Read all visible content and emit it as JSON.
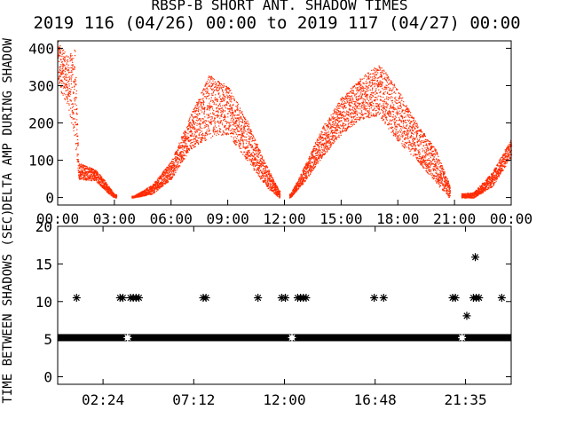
{
  "title_line1": "RBSP-B SHORT ANT. SHADOW TIMES",
  "title_line2": "2019 116 (04/26) 00:00 to 2019 117 (04/27) 00:00",
  "chart_data": [
    {
      "type": "scatter",
      "ylabel": "DELTA AMP DURING SHADOW",
      "x_ticks": [
        "00:00",
        "03:00",
        "06:00",
        "09:00",
        "12:00",
        "15:00",
        "18:00",
        "21:00",
        "00:00"
      ],
      "x_range_hours": [
        0,
        24
      ],
      "y_ticks": [
        0,
        100,
        200,
        300,
        400
      ],
      "ylim": [
        -20,
        420
      ],
      "color": "#ff2a00",
      "envelope": [
        {
          "x": 0.0,
          "lo": 300,
          "hi": 420
        },
        {
          "x": 0.5,
          "lo": 250,
          "hi": 380
        },
        {
          "x": 0.9,
          "lo": 150,
          "hi": 400
        },
        {
          "x": 1.1,
          "lo": 50,
          "hi": 95
        },
        {
          "x": 2.0,
          "lo": 45,
          "hi": 75
        },
        {
          "x": 2.3,
          "lo": 30,
          "hi": 60
        },
        {
          "x": 2.7,
          "lo": 10,
          "hi": 30
        },
        {
          "x": 3.0,
          "lo": 0,
          "hi": 10
        },
        {
          "x": 4.0,
          "lo": 0,
          "hi": 5
        },
        {
          "x": 5.0,
          "lo": 10,
          "hi": 35
        },
        {
          "x": 6.0,
          "lo": 50,
          "hi": 100
        },
        {
          "x": 7.0,
          "lo": 130,
          "hi": 220
        },
        {
          "x": 8.0,
          "lo": 160,
          "hi": 330
        },
        {
          "x": 9.0,
          "lo": 170,
          "hi": 300
        },
        {
          "x": 10.0,
          "lo": 100,
          "hi": 210
        },
        {
          "x": 11.0,
          "lo": 30,
          "hi": 90
        },
        {
          "x": 11.7,
          "lo": 0,
          "hi": 20
        },
        {
          "x": 12.3,
          "lo": 0,
          "hi": 10
        },
        {
          "x": 13.0,
          "lo": 40,
          "hi": 80
        },
        {
          "x": 14.0,
          "lo": 110,
          "hi": 190
        },
        {
          "x": 15.0,
          "lo": 170,
          "hi": 270
        },
        {
          "x": 16.0,
          "lo": 210,
          "hi": 320
        },
        {
          "x": 17.0,
          "lo": 220,
          "hi": 360
        },
        {
          "x": 18.0,
          "lo": 150,
          "hi": 290
        },
        {
          "x": 19.0,
          "lo": 100,
          "hi": 200
        },
        {
          "x": 20.0,
          "lo": 40,
          "hi": 130
        },
        {
          "x": 20.7,
          "lo": 0,
          "hi": 40
        },
        {
          "x": 21.0,
          "lo": 0,
          "hi": 10
        },
        {
          "x": 22.0,
          "lo": 0,
          "hi": 15
        },
        {
          "x": 23.0,
          "lo": 30,
          "hi": 70
        },
        {
          "x": 24.0,
          "lo": 110,
          "hi": 160
        }
      ]
    },
    {
      "type": "scatter",
      "ylabel": "TIME BETWEEN SHADOWS (SEC)",
      "x_ticks": [
        "02:24",
        "07:12",
        "12:00",
        "16:48",
        "21:35"
      ],
      "x_tick_hours": [
        2.4,
        7.2,
        12.0,
        16.8,
        21.5833
      ],
      "x_range_hours": [
        0,
        24
      ],
      "y_ticks": [
        0,
        5,
        10,
        15,
        20
      ],
      "ylim": [
        -1,
        20
      ],
      "baseline_value": 5.2,
      "baseline_hours": [
        0,
        24
      ],
      "points": [
        {
          "x": 1.0,
          "y": 10.5
        },
        {
          "x": 3.3,
          "y": 10.5
        },
        {
          "x": 3.45,
          "y": 10.5
        },
        {
          "x": 3.85,
          "y": 10.5
        },
        {
          "x": 4.0,
          "y": 10.5
        },
        {
          "x": 4.15,
          "y": 10.5
        },
        {
          "x": 4.3,
          "y": 10.5
        },
        {
          "x": 7.7,
          "y": 10.5
        },
        {
          "x": 7.85,
          "y": 10.5
        },
        {
          "x": 10.6,
          "y": 10.5
        },
        {
          "x": 11.85,
          "y": 10.5
        },
        {
          "x": 12.05,
          "y": 10.5
        },
        {
          "x": 12.7,
          "y": 10.5
        },
        {
          "x": 12.85,
          "y": 10.5
        },
        {
          "x": 13.0,
          "y": 10.5
        },
        {
          "x": 13.15,
          "y": 10.5
        },
        {
          "x": 16.75,
          "y": 10.5
        },
        {
          "x": 17.25,
          "y": 10.5
        },
        {
          "x": 20.9,
          "y": 10.5
        },
        {
          "x": 21.05,
          "y": 10.5
        },
        {
          "x": 22.0,
          "y": 10.5
        },
        {
          "x": 22.15,
          "y": 10.5
        },
        {
          "x": 22.3,
          "y": 10.5
        },
        {
          "x": 23.5,
          "y": 10.5
        },
        {
          "x": 22.1,
          "y": 15.9
        },
        {
          "x": 21.65,
          "y": 8.1
        },
        {
          "x": 3.7,
          "y": 5.2
        },
        {
          "x": 12.4,
          "y": 5.2
        },
        {
          "x": 21.4,
          "y": 5.2
        }
      ]
    }
  ]
}
